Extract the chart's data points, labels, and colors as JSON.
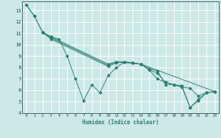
{
  "title": "",
  "xlabel": "Humidex (Indice chaleur)",
  "xlim": [
    -0.5,
    23.5
  ],
  "ylim": [
    4,
    13.8
  ],
  "yticks": [
    4,
    5,
    6,
    7,
    8,
    9,
    10,
    11,
    12,
    13
  ],
  "xticks": [
    0,
    1,
    2,
    3,
    4,
    5,
    6,
    7,
    8,
    9,
    10,
    11,
    12,
    13,
    14,
    15,
    16,
    17,
    18,
    19,
    20,
    21,
    22,
    23
  ],
  "background_color": "#cce9e5",
  "grid_color": "#ffffff",
  "line_color": "#2e7d6e",
  "lines": [
    {
      "x": [
        0,
        1,
        2,
        3,
        4,
        5,
        6,
        7,
        8,
        9,
        10,
        11,
        12,
        13,
        14,
        15,
        16,
        17,
        18,
        19,
        20,
        21,
        22,
        23
      ],
      "y": [
        13.5,
        12.5,
        11.1,
        10.7,
        10.5,
        9.0,
        7.0,
        5.1,
        6.5,
        5.8,
        7.3,
        8.0,
        8.5,
        8.4,
        8.3,
        7.8,
        7.0,
        6.7,
        6.5,
        6.3,
        4.5,
        5.1,
        5.8,
        5.9
      ]
    },
    {
      "x": [
        2,
        3,
        10,
        11,
        12,
        13,
        14,
        15,
        16,
        17,
        18,
        19,
        20,
        21,
        22,
        23
      ],
      "y": [
        11.1,
        10.5,
        8.1,
        8.4,
        8.5,
        8.4,
        8.3,
        7.8,
        7.5,
        6.7,
        6.5,
        6.3,
        6.2,
        5.5,
        5.8,
        5.9
      ]
    },
    {
      "x": [
        0,
        1,
        2,
        3,
        10,
        11,
        14,
        23
      ],
      "y": [
        13.5,
        12.5,
        11.1,
        10.7,
        8.3,
        8.5,
        8.3,
        5.9
      ]
    },
    {
      "x": [
        2,
        3,
        10,
        11,
        12,
        13,
        14,
        15,
        16,
        17,
        18,
        19,
        20,
        21,
        22,
        23
      ],
      "y": [
        11.1,
        10.6,
        8.2,
        8.5,
        8.5,
        8.4,
        8.3,
        7.9,
        7.7,
        6.5,
        6.5,
        6.4,
        4.5,
        5.2,
        5.8,
        5.9
      ]
    }
  ]
}
